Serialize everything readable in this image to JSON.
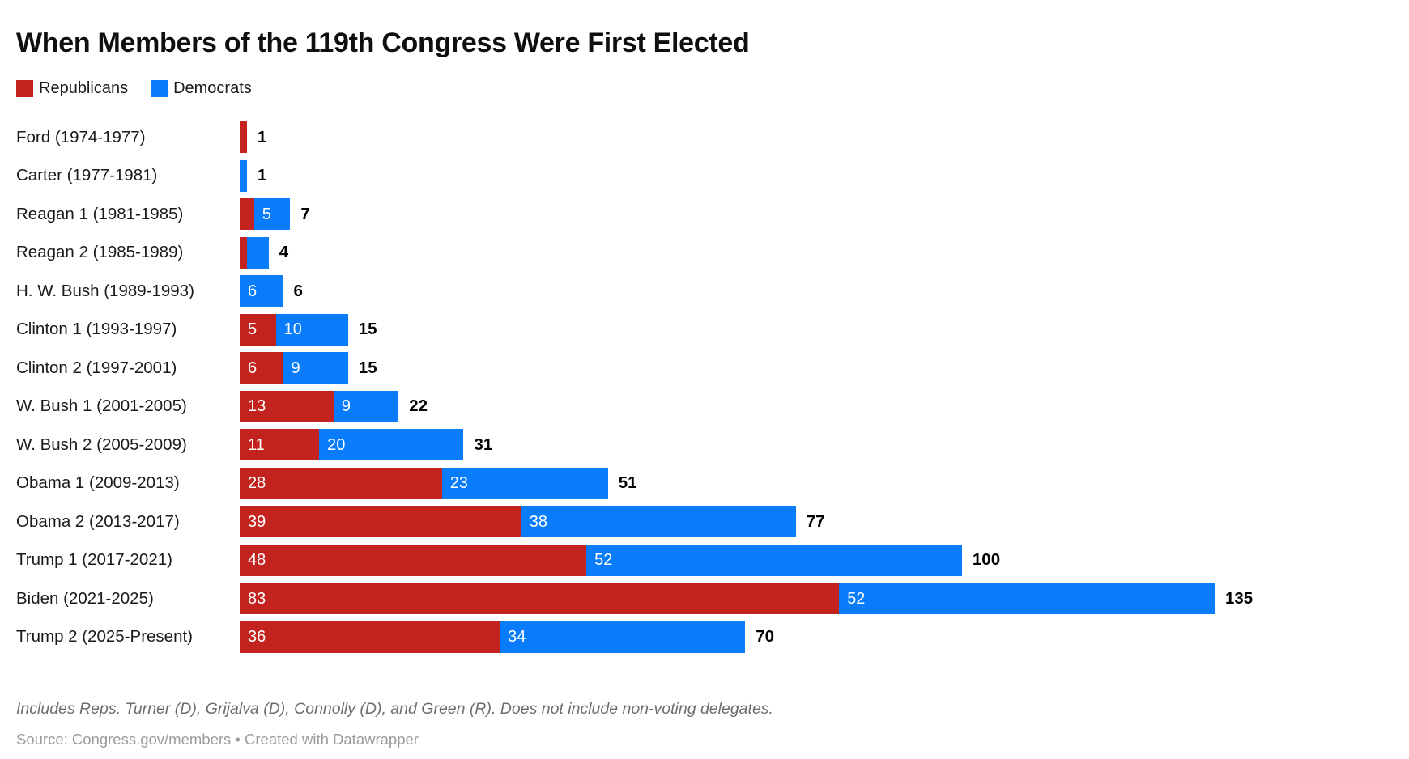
{
  "title": "When Members of the 119th Congress Were First Elected",
  "legend": {
    "republicans": "Republicans",
    "democrats": "Democrats"
  },
  "colors": {
    "republican": "#c2231f",
    "democrat": "#087cfb",
    "total_label": "#000000",
    "footnote_text": "#6d6d6d",
    "source_text": "#9b9b9b"
  },
  "chart_data": {
    "type": "bar",
    "orientation": "horizontal",
    "stacked": true,
    "grid": false,
    "legend_position": "top-left",
    "categories": [
      "Ford (1974-1977)",
      "Carter (1977-1981)",
      "Reagan 1 (1981-1985)",
      "Reagan 2 (1985-1989)",
      "H. W. Bush (1989-1993)",
      "Clinton 1 (1993-1997)",
      "Clinton 2 (1997-2001)",
      "W. Bush 1 (2001-2005)",
      "W. Bush 2 (2005-2009)",
      "Obama 1 (2009-2013)",
      "Obama 2 (2013-2017)",
      "Trump 1 (2017-2021)",
      "Biden (2021-2025)",
      "Trump 2 (2025-Present)"
    ],
    "series": [
      {
        "name": "Republicans",
        "color": "#c2231f",
        "values": [
          1,
          0,
          2,
          1,
          0,
          5,
          6,
          13,
          11,
          28,
          39,
          48,
          83,
          36
        ]
      },
      {
        "name": "Democrats",
        "color": "#087cfb",
        "values": [
          0,
          1,
          5,
          3,
          6,
          10,
          9,
          9,
          20,
          23,
          38,
          52,
          52,
          34
        ]
      }
    ],
    "totals": [
      1,
      1,
      7,
      4,
      6,
      15,
      15,
      22,
      31,
      51,
      77,
      100,
      135,
      70
    ],
    "xlim": [
      0,
      135
    ],
    "inner_label_min_value": 5
  },
  "footnote": "Includes Reps. Turner (D), Grijalva (D), Connolly (D), and Green (R). Does not include non-voting delegates.",
  "source_line": "Source: Congress.gov/members • Created with Datawrapper"
}
